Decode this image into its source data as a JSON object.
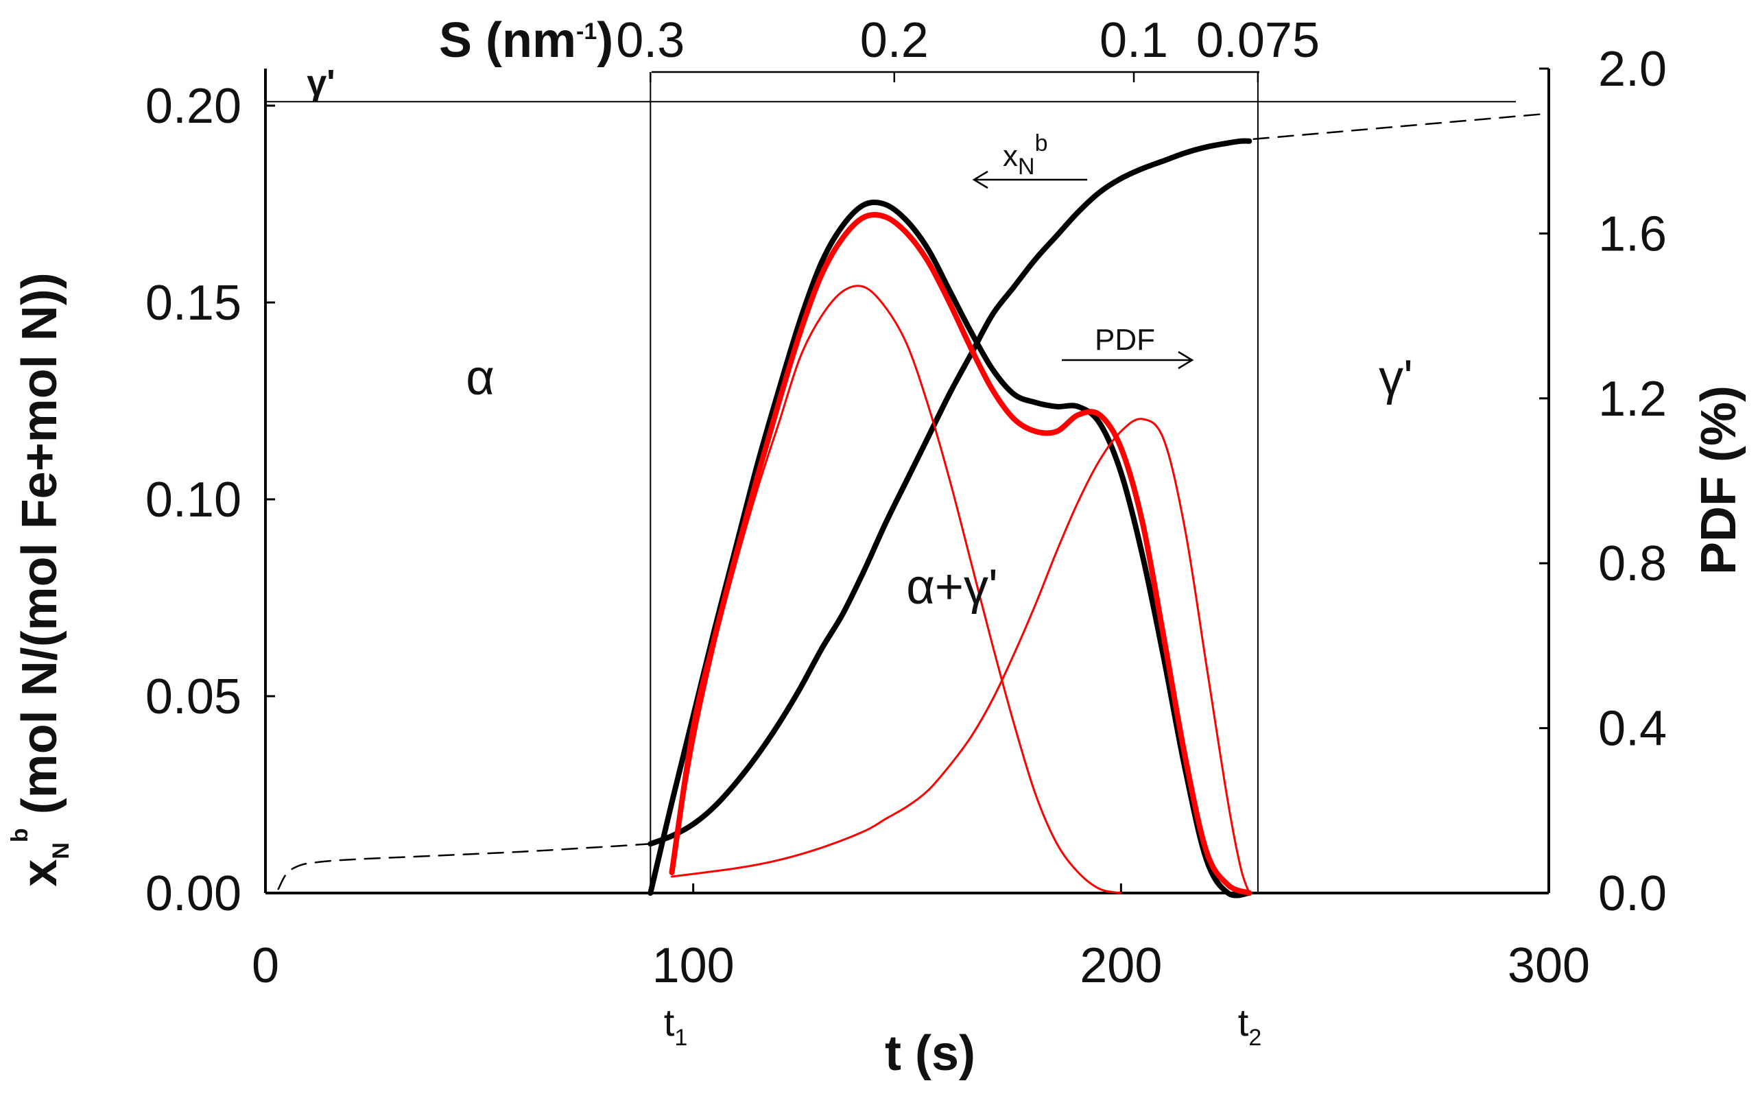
{
  "chart_data": {
    "type": "line",
    "xlabel": "t (s)",
    "xlim": [
      0,
      300
    ],
    "x_ticks": [
      "0",
      "100",
      "200",
      "300"
    ],
    "y_left": {
      "label_main": "x",
      "label_sub": "N",
      "label_sup": "b",
      "label_rest": " (mol N/(mol Fe+mol N))",
      "lim": [
        0,
        0.21
      ],
      "ticks": [
        "0.00",
        "0.05",
        "0.10",
        "0.15",
        "0.20"
      ]
    },
    "y_right": {
      "label": "PDF (%)",
      "lim": [
        0,
        2.0
      ],
      "ticks": [
        "0.0",
        "0.4",
        "0.8",
        "1.2",
        "1.6",
        "2.0"
      ]
    },
    "top_axis": {
      "label_main": "S (nm",
      "label_sup": "-1",
      "label_close": ")",
      "ticks": [
        {
          "label": "0.3",
          "t": 90
        },
        {
          "label": "0.2",
          "t": 147
        },
        {
          "label": "0.1",
          "t": 203
        },
        {
          "label": "0.075",
          "t": 232
        }
      ]
    },
    "regions": {
      "alpha": "α",
      "mixed": "α+γ'",
      "gamma_right": "γ'",
      "gamma_top": "γ'"
    },
    "markers": {
      "t1_main": "t",
      "t1_sub": "1",
      "t1_at": 90,
      "t2_main": "t",
      "t2_sub": "2",
      "t2_at": 232
    },
    "gamma_prime_level": 0.201,
    "annotations": {
      "xnb_main": "x",
      "xnb_sub": "N",
      "xnb_sup": "b",
      "pdf": "PDF"
    },
    "series": [
      {
        "name": "x_N^b dashed (before t1)",
        "axis": "left",
        "color": "#000000",
        "style": "dashed",
        "x": [
          3,
          5,
          8,
          12,
          20,
          40,
          60,
          80,
          90
        ],
        "y": [
          0.001,
          0.005,
          0.007,
          0.0078,
          0.0085,
          0.0095,
          0.0105,
          0.0118,
          0.0125
        ]
      },
      {
        "name": "x_N^b",
        "axis": "left",
        "color": "#000000",
        "style": "solid",
        "x": [
          90,
          95,
          100,
          105,
          110,
          115,
          120,
          125,
          130,
          135,
          140,
          145,
          150,
          155,
          160,
          165,
          170,
          175,
          180,
          185,
          190,
          195,
          200,
          205,
          210,
          215,
          220,
          225,
          228,
          230
        ],
        "y": [
          0.0125,
          0.0145,
          0.0175,
          0.022,
          0.028,
          0.035,
          0.043,
          0.052,
          0.062,
          0.071,
          0.082,
          0.094,
          0.105,
          0.116,
          0.127,
          0.137,
          0.147,
          0.154,
          0.161,
          0.167,
          0.173,
          0.178,
          0.1815,
          0.184,
          0.186,
          0.188,
          0.1895,
          0.1905,
          0.191,
          0.191
        ]
      },
      {
        "name": "x_N^b dashed (after t2)",
        "axis": "left",
        "color": "#000000",
        "style": "dashed",
        "x": [
          231,
          300
        ],
        "y": [
          0.1915,
          0.198
        ]
      },
      {
        "name": "PDF (measured)",
        "axis": "right",
        "color": "#000000",
        "style": "solid",
        "x": [
          90,
          95,
          100,
          105,
          110,
          115,
          120,
          125,
          130,
          135,
          140,
          145,
          150,
          155,
          160,
          165,
          170,
          175,
          180,
          185,
          190,
          195,
          200,
          205,
          210,
          215,
          220,
          225,
          230
        ],
        "y": [
          0.0,
          0.22,
          0.43,
          0.64,
          0.84,
          1.04,
          1.22,
          1.39,
          1.53,
          1.62,
          1.67,
          1.67,
          1.63,
          1.56,
          1.46,
          1.36,
          1.27,
          1.21,
          1.19,
          1.18,
          1.18,
          1.14,
          1.02,
          0.82,
          0.57,
          0.3,
          0.08,
          0.0,
          0.0
        ]
      },
      {
        "name": "PDF fit (sum)",
        "axis": "right",
        "color": "#ff0000",
        "style": "solid-thick",
        "x": [
          95,
          100,
          105,
          110,
          115,
          120,
          125,
          130,
          135,
          140,
          145,
          150,
          155,
          160,
          165,
          170,
          175,
          180,
          185,
          190,
          195,
          200,
          205,
          210,
          215,
          220,
          225,
          230
        ],
        "y": [
          0.05,
          0.4,
          0.62,
          0.82,
          1.01,
          1.19,
          1.36,
          1.5,
          1.59,
          1.64,
          1.64,
          1.6,
          1.53,
          1.43,
          1.32,
          1.22,
          1.15,
          1.12,
          1.12,
          1.16,
          1.16,
          1.08,
          0.9,
          0.62,
          0.33,
          0.1,
          0.02,
          0.0
        ]
      },
      {
        "name": "PDF component 1 (α→γ')",
        "axis": "right",
        "color": "#ff0000",
        "style": "solid-thin",
        "x": [
          95,
          100,
          105,
          110,
          115,
          120,
          125,
          130,
          135,
          140,
          145,
          150,
          155,
          160,
          165,
          170,
          175,
          180,
          185,
          190,
          195,
          200
        ],
        "y": [
          0.05,
          0.36,
          0.6,
          0.8,
          0.98,
          1.14,
          1.3,
          1.4,
          1.46,
          1.47,
          1.42,
          1.33,
          1.18,
          1.0,
          0.8,
          0.6,
          0.41,
          0.24,
          0.12,
          0.05,
          0.01,
          0.0
        ]
      },
      {
        "name": "PDF component 2",
        "axis": "right",
        "color": "#ff0000",
        "style": "solid-thin",
        "x": [
          95,
          110,
          120,
          130,
          140,
          145,
          150,
          155,
          160,
          165,
          170,
          175,
          180,
          185,
          190,
          195,
          200,
          205,
          210,
          215,
          220,
          225,
          228,
          230
        ],
        "y": [
          0.04,
          0.06,
          0.08,
          0.11,
          0.15,
          0.18,
          0.21,
          0.25,
          0.31,
          0.38,
          0.47,
          0.58,
          0.7,
          0.83,
          0.95,
          1.05,
          1.12,
          1.15,
          1.1,
          0.88,
          0.55,
          0.22,
          0.06,
          0.0
        ]
      }
    ]
  }
}
